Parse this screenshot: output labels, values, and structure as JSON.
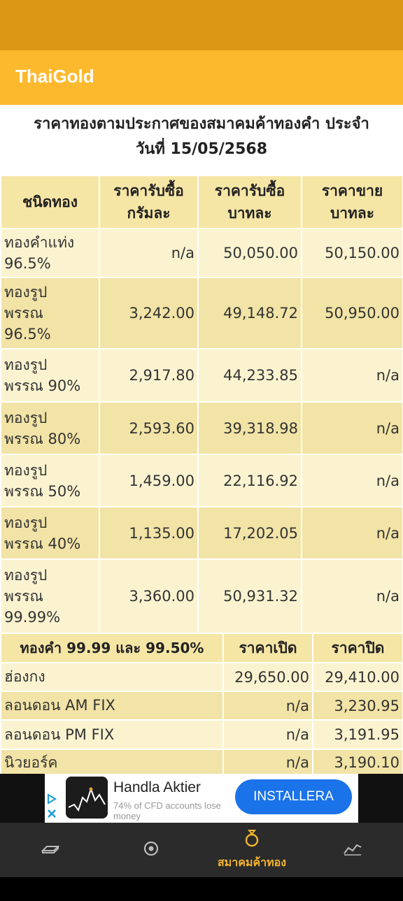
{
  "app": {
    "title": "ThaiGold"
  },
  "heading": {
    "line1": "ราคาทองตามประกาศของสมาคมค้าทองคำ ประจำ",
    "line2": "วันที่ 15/05/2568"
  },
  "table1": {
    "headers": [
      {
        "line1": "ชนิดทอง",
        "line2": ""
      },
      {
        "line1": "ราคารับซื้อ",
        "line2": "กรัมละ"
      },
      {
        "line1": "ราคารับซื้อ",
        "line2": "บาทละ"
      },
      {
        "line1": "ราคาขาย",
        "line2": "บาทละ"
      }
    ],
    "rows": [
      {
        "type": "ทองคำแท่ง 96.5%",
        "buy_gram": "n/a",
        "buy_baht": "50,050.00",
        "sell_baht": "50,150.00"
      },
      {
        "type": "ทองรูปพรรณ 96.5%",
        "buy_gram": "3,242.00",
        "buy_baht": "49,148.72",
        "sell_baht": "50,950.00"
      },
      {
        "type": "ทองรูปพรรณ 90%",
        "buy_gram": "2,917.80",
        "buy_baht": "44,233.85",
        "sell_baht": "n/a"
      },
      {
        "type": "ทองรูปพรรณ 80%",
        "buy_gram": "2,593.60",
        "buy_baht": "39,318.98",
        "sell_baht": "n/a"
      },
      {
        "type": "ทองรูปพรรณ 50%",
        "buy_gram": "1,459.00",
        "buy_baht": "22,116.92",
        "sell_baht": "n/a"
      },
      {
        "type": "ทองรูปพรรณ 40%",
        "buy_gram": "1,135.00",
        "buy_baht": "17,202.05",
        "sell_baht": "n/a"
      },
      {
        "type": "ทองรูปพรรณ 99.99%",
        "buy_gram": "3,360.00",
        "buy_baht": "50,931.32",
        "sell_baht": "n/a"
      }
    ]
  },
  "table2": {
    "headers": [
      "ทองคำ 99.99 และ 99.50%",
      "ราคาเปิด",
      "ราคาปิด"
    ],
    "rows": [
      {
        "market": "ฮ่องกง",
        "open": "29,650.00",
        "close": "29,410.00"
      },
      {
        "market": "ลอนดอน AM FIX",
        "open": "n/a",
        "close": "3,230.95"
      },
      {
        "market": "ลอนดอน PM FIX",
        "open": "n/a",
        "close": "3,191.95"
      },
      {
        "market": "นิวยอร์ค",
        "open": "n/a",
        "close": "3,190.10"
      }
    ]
  },
  "ad": {
    "title": "Handla Aktier",
    "subtitle": "74% of CFD accounts lose money",
    "install_label": "INSTALLERA"
  },
  "bottom_nav": {
    "items": [
      {
        "icon": "gold-bar-icon",
        "label": ""
      },
      {
        "icon": "target-icon",
        "label": ""
      },
      {
        "icon": "ring-icon",
        "label": "สมาคมค้าทอง"
      },
      {
        "icon": "chart-trend-icon",
        "label": ""
      }
    ],
    "active_color": "#F5B52C"
  },
  "colors": {
    "status_bar": "#DC9813",
    "app_bar": "#FDB92E",
    "header_bg": "#F6E6A6",
    "row_light": "#FBF3D0",
    "row_dark": "#F2E3A6",
    "install_button": "#1A73E8"
  }
}
